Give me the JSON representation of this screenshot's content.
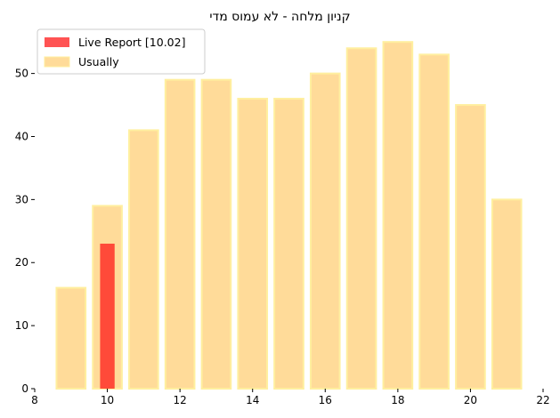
{
  "chart_data": {
    "type": "bar",
    "title": "קניון מלחה  - לא עמוס מדי",
    "xlabel": "",
    "ylabel": "",
    "xlim": [
      8,
      22
    ],
    "ylim": [
      0,
      57
    ],
    "x_ticks": [
      8,
      10,
      12,
      14,
      16,
      18,
      20,
      22
    ],
    "y_ticks": [
      0,
      10,
      20,
      30,
      40,
      50
    ],
    "grid": false,
    "legend_position": "top-left",
    "series": [
      {
        "name": "Live Report [10.02]",
        "color": "#ff1a1a",
        "opacity": 0.75,
        "x": [
          10
        ],
        "values": [
          23
        ]
      },
      {
        "name": "Usually",
        "color": "#ffd27f",
        "edge_color": "#ffef9f",
        "opacity": 0.8,
        "x": [
          9,
          10,
          11,
          12,
          13,
          14,
          15,
          16,
          17,
          18,
          19,
          20,
          21
        ],
        "values": [
          16,
          29,
          41,
          49,
          49,
          46,
          46,
          50,
          54,
          55,
          53,
          45,
          30
        ]
      }
    ]
  }
}
